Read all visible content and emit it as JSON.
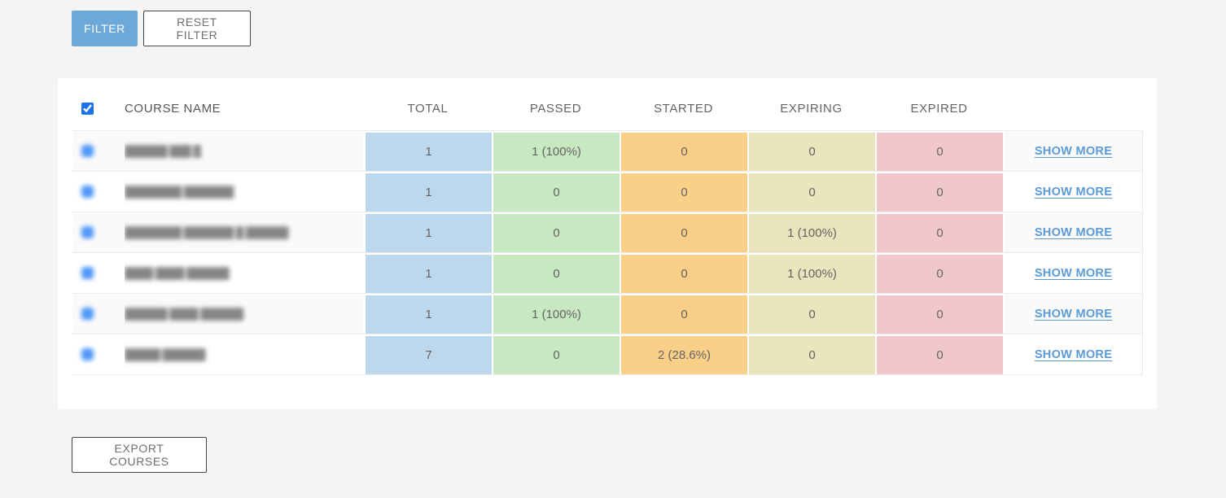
{
  "colors": {
    "page_background": "#f4f4f4",
    "card_background": "#ffffff",
    "filter_button": "#6ca9d8",
    "filter_button_text": "#ffffff",
    "outline_button_border": "#454545",
    "outline_button_text": "#6e6e6e",
    "header_text": "#565656",
    "cell_text": "#636363",
    "link": "#5b9bd5",
    "checkbox_accent": "#1a73e8",
    "row_stripe": "#fafafa",
    "row_border": "#ececec"
  },
  "toolbar": {
    "filter_label": "FILTER",
    "reset_filter_label": "RESET FILTER"
  },
  "table": {
    "headers": {
      "course_name": "COURSE NAME",
      "total": "TOTAL",
      "passed": "PASSED",
      "started": "STARTED",
      "expiring": "EXPIRING",
      "expired": "EXPIRED"
    },
    "select_all_checked": true,
    "show_more_label": "SHOW MORE",
    "column_colors": {
      "total": "#bdd7ec",
      "passed": "#c7e8c0",
      "started": "#fad089",
      "expiring": "#eae5bd",
      "expired": "#f0c8ca"
    },
    "rows": [
      {
        "name": "██████ ███ █",
        "total": "1",
        "passed": "1 (100%)",
        "started": "0",
        "expiring": "0",
        "expired": "0"
      },
      {
        "name": "████████ ███████",
        "total": "1",
        "passed": "0",
        "started": "0",
        "expiring": "0",
        "expired": "0"
      },
      {
        "name": "████████ ███████ █ ██████",
        "total": "1",
        "passed": "0",
        "started": "0",
        "expiring": "1 (100%)",
        "expired": "0"
      },
      {
        "name": "████ ████ ██████",
        "total": "1",
        "passed": "0",
        "started": "0",
        "expiring": "1 (100%)",
        "expired": "0"
      },
      {
        "name": "██████ ████ ██████",
        "total": "1",
        "passed": "1 (100%)",
        "started": "0",
        "expiring": "0",
        "expired": "0"
      },
      {
        "name": "█████ ██████",
        "total": "7",
        "passed": "0",
        "started": "2 (28.6%)",
        "expiring": "0",
        "expired": "0"
      }
    ]
  },
  "footer": {
    "export_label": "EXPORT COURSES"
  }
}
